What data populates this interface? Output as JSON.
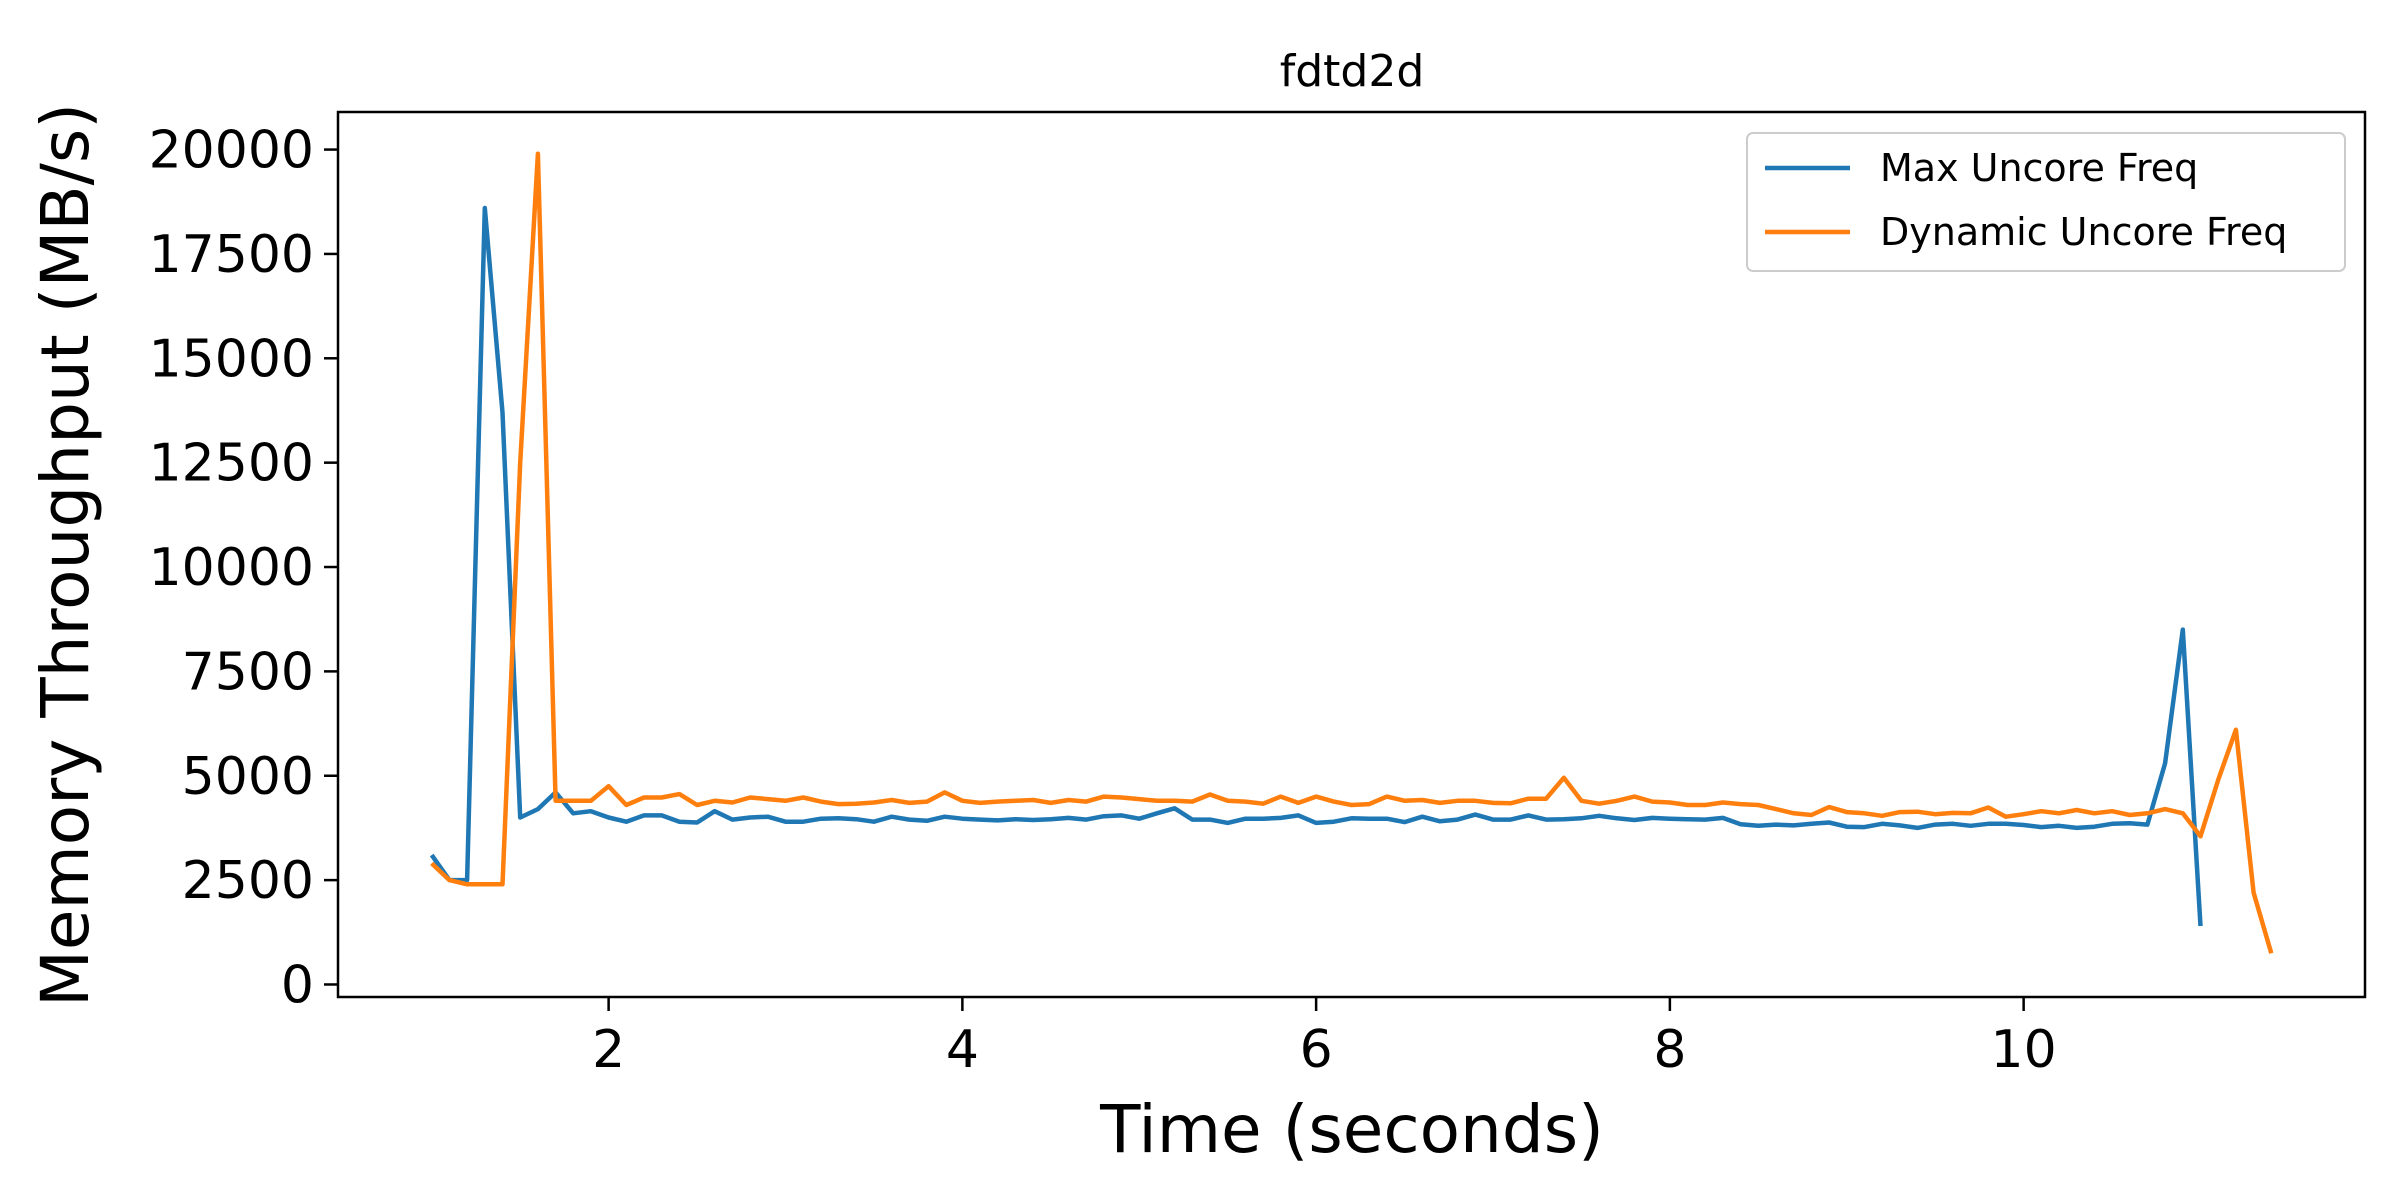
{
  "chart_data": {
    "type": "line",
    "title": "fdtd2d",
    "xlabel": "Time (seconds)",
    "ylabel": "Memory Throughput (MB/s)",
    "xlim": [
      0.47,
      11.93
    ],
    "ylim": [
      -300,
      20900
    ],
    "xticks": [
      2,
      4,
      6,
      8,
      10
    ],
    "xtick_labels": [
      "2",
      "4",
      "6",
      "8",
      "10"
    ],
    "yticks": [
      0,
      2500,
      5000,
      7500,
      10000,
      12500,
      15000,
      17500,
      20000
    ],
    "ytick_labels": [
      "0",
      "2500",
      "5000",
      "7500",
      "10000",
      "12500",
      "15000",
      "17500",
      "20000"
    ],
    "grid": false,
    "legend_position": "top-right",
    "series": [
      {
        "name": "Max Uncore Freq",
        "color": "#1f77b4",
        "x": [
          1.0,
          1.1,
          1.2,
          1.3,
          1.4,
          1.5,
          1.6,
          1.7,
          1.8,
          1.9,
          2.0,
          2.1,
          2.2,
          2.3,
          2.4,
          2.5,
          2.6,
          2.7,
          2.8,
          2.9,
          3.0,
          3.1,
          3.2,
          3.3,
          3.4,
          3.5,
          3.6,
          3.7,
          3.8,
          3.9,
          4.0,
          4.1,
          4.2,
          4.3,
          4.4,
          4.5,
          4.6,
          4.7,
          4.8,
          4.9,
          5.0,
          5.1,
          5.2,
          5.3,
          5.4,
          5.5,
          5.6,
          5.7,
          5.8,
          5.9,
          6.0,
          6.1,
          6.2,
          6.3,
          6.4,
          6.5,
          6.6,
          6.7,
          6.8,
          6.9,
          7.0,
          7.1,
          7.2,
          7.3,
          7.4,
          7.5,
          7.6,
          7.7,
          7.8,
          7.9,
          8.0,
          8.1,
          8.2,
          8.3,
          8.4,
          8.5,
          8.6,
          8.7,
          8.8,
          8.9,
          9.0,
          9.1,
          9.2,
          9.3,
          9.4,
          9.5,
          9.6,
          9.7,
          9.8,
          9.9,
          10.0,
          10.1,
          10.2,
          10.3,
          10.4,
          10.5,
          10.6,
          10.7,
          10.8,
          10.9,
          11.0
        ],
        "y": [
          3100,
          2500,
          2500,
          18600,
          13700,
          4000,
          4200,
          4600,
          4100,
          4150,
          4000,
          3900,
          4050,
          4050,
          3900,
          3880,
          4150,
          3950,
          4000,
          4020,
          3900,
          3900,
          3970,
          3980,
          3960,
          3900,
          4020,
          3950,
          3920,
          4020,
          3970,
          3950,
          3930,
          3960,
          3940,
          3960,
          3990,
          3950,
          4030,
          4050,
          3970,
          4100,
          4220,
          3950,
          3950,
          3870,
          3970,
          3970,
          3990,
          4050,
          3870,
          3900,
          3980,
          3970,
          3970,
          3890,
          4020,
          3910,
          3950,
          4070,
          3950,
          3950,
          4050,
          3950,
          3960,
          3980,
          4040,
          3980,
          3940,
          3990,
          3970,
          3960,
          3950,
          3990,
          3840,
          3800,
          3830,
          3810,
          3850,
          3880,
          3780,
          3770,
          3850,
          3810,
          3750,
          3830,
          3850,
          3800,
          3850,
          3850,
          3820,
          3770,
          3800,
          3750,
          3780,
          3850,
          3860,
          3830,
          5300,
          8500,
          1400
        ]
      },
      {
        "name": "Dynamic Uncore Freq",
        "color": "#ff7f0e",
        "x": [
          1.0,
          1.1,
          1.2,
          1.3,
          1.4,
          1.5,
          1.6,
          1.7,
          1.8,
          1.9,
          2.0,
          2.1,
          2.2,
          2.3,
          2.4,
          2.5,
          2.6,
          2.7,
          2.8,
          2.9,
          3.0,
          3.1,
          3.2,
          3.3,
          3.4,
          3.5,
          3.6,
          3.7,
          3.8,
          3.9,
          4.0,
          4.1,
          4.2,
          4.3,
          4.4,
          4.5,
          4.6,
          4.7,
          4.8,
          4.9,
          5.0,
          5.1,
          5.2,
          5.3,
          5.4,
          5.5,
          5.6,
          5.7,
          5.8,
          5.9,
          6.0,
          6.1,
          6.2,
          6.3,
          6.4,
          6.5,
          6.6,
          6.7,
          6.8,
          6.9,
          7.0,
          7.1,
          7.2,
          7.3,
          7.4,
          7.5,
          7.6,
          7.7,
          7.8,
          7.9,
          8.0,
          8.1,
          8.2,
          8.3,
          8.4,
          8.5,
          8.6,
          8.7,
          8.8,
          8.9,
          9.0,
          9.1,
          9.2,
          9.3,
          9.4,
          9.5,
          9.6,
          9.7,
          9.8,
          9.9,
          10.0,
          10.1,
          10.2,
          10.3,
          10.4,
          10.5,
          10.6,
          10.7,
          10.8,
          10.9,
          11.0,
          11.1,
          11.2,
          11.3,
          11.4
        ],
        "y": [
          2900,
          2500,
          2400,
          2400,
          2400,
          12500,
          19900,
          4400,
          4400,
          4400,
          4750,
          4300,
          4480,
          4480,
          4560,
          4300,
          4400,
          4360,
          4480,
          4440,
          4400,
          4480,
          4380,
          4320,
          4330,
          4360,
          4420,
          4350,
          4380,
          4600,
          4400,
          4350,
          4380,
          4400,
          4420,
          4350,
          4420,
          4380,
          4500,
          4480,
          4440,
          4400,
          4400,
          4380,
          4550,
          4400,
          4380,
          4330,
          4500,
          4350,
          4500,
          4380,
          4300,
          4320,
          4500,
          4400,
          4420,
          4350,
          4400,
          4400,
          4350,
          4340,
          4450,
          4450,
          4950,
          4400,
          4330,
          4400,
          4500,
          4380,
          4360,
          4300,
          4300,
          4360,
          4320,
          4300,
          4200,
          4100,
          4060,
          4250,
          4130,
          4100,
          4040,
          4130,
          4140,
          4080,
          4110,
          4100,
          4240,
          4020,
          4080,
          4150,
          4100,
          4180,
          4100,
          4150,
          4060,
          4100,
          4200,
          4100,
          3550,
          4900,
          6100,
          2200,
          750
        ]
      }
    ]
  }
}
